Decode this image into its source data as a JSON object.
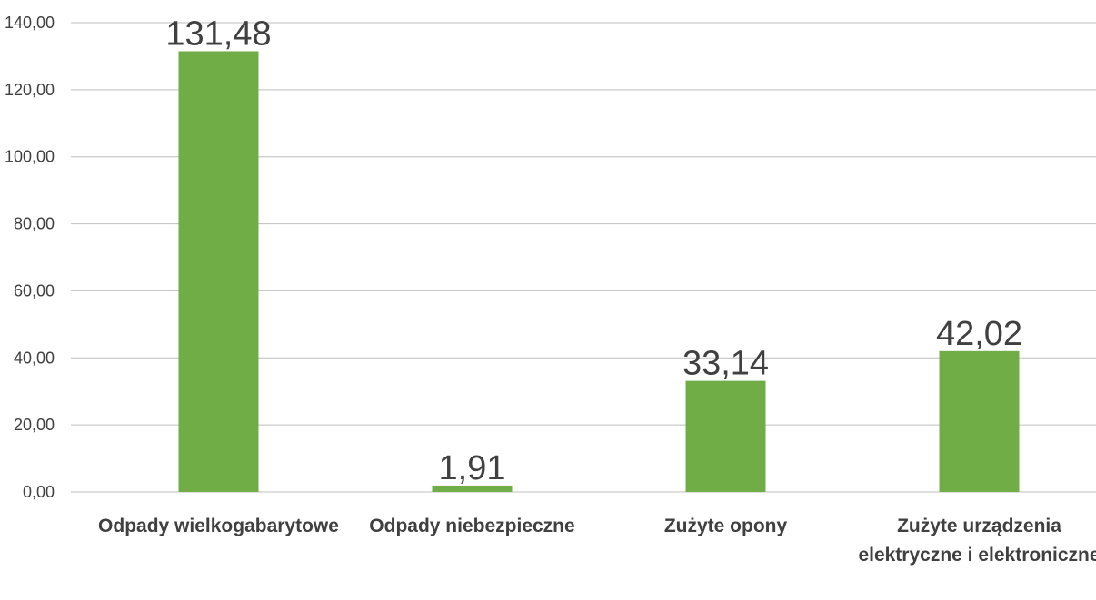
{
  "chart_data": {
    "type": "bar",
    "categories": [
      "Odpady wielkogabarytowe",
      "Odpady niebezpieczne",
      "Zużyte opony",
      "Zużyte urządzenia elektryczne i elektroniczne"
    ],
    "values": [
      131.48,
      1.91,
      33.14,
      42.02
    ],
    "value_labels": [
      "131,48",
      "1,91",
      "33,14",
      "42,02"
    ],
    "color": "#70ad47",
    "ylim": [
      0,
      140
    ],
    "yticks": [
      {
        "value": 0,
        "label": "0,00"
      },
      {
        "value": 20,
        "label": "20,00"
      },
      {
        "value": 40,
        "label": "40,00"
      },
      {
        "value": 60,
        "label": "60,00"
      },
      {
        "value": 80,
        "label": "80,00"
      },
      {
        "value": 100,
        "label": "100,00"
      },
      {
        "value": 120,
        "label": "120,00"
      },
      {
        "value": 140,
        "label": "140,00"
      }
    ],
    "grid": true
  }
}
